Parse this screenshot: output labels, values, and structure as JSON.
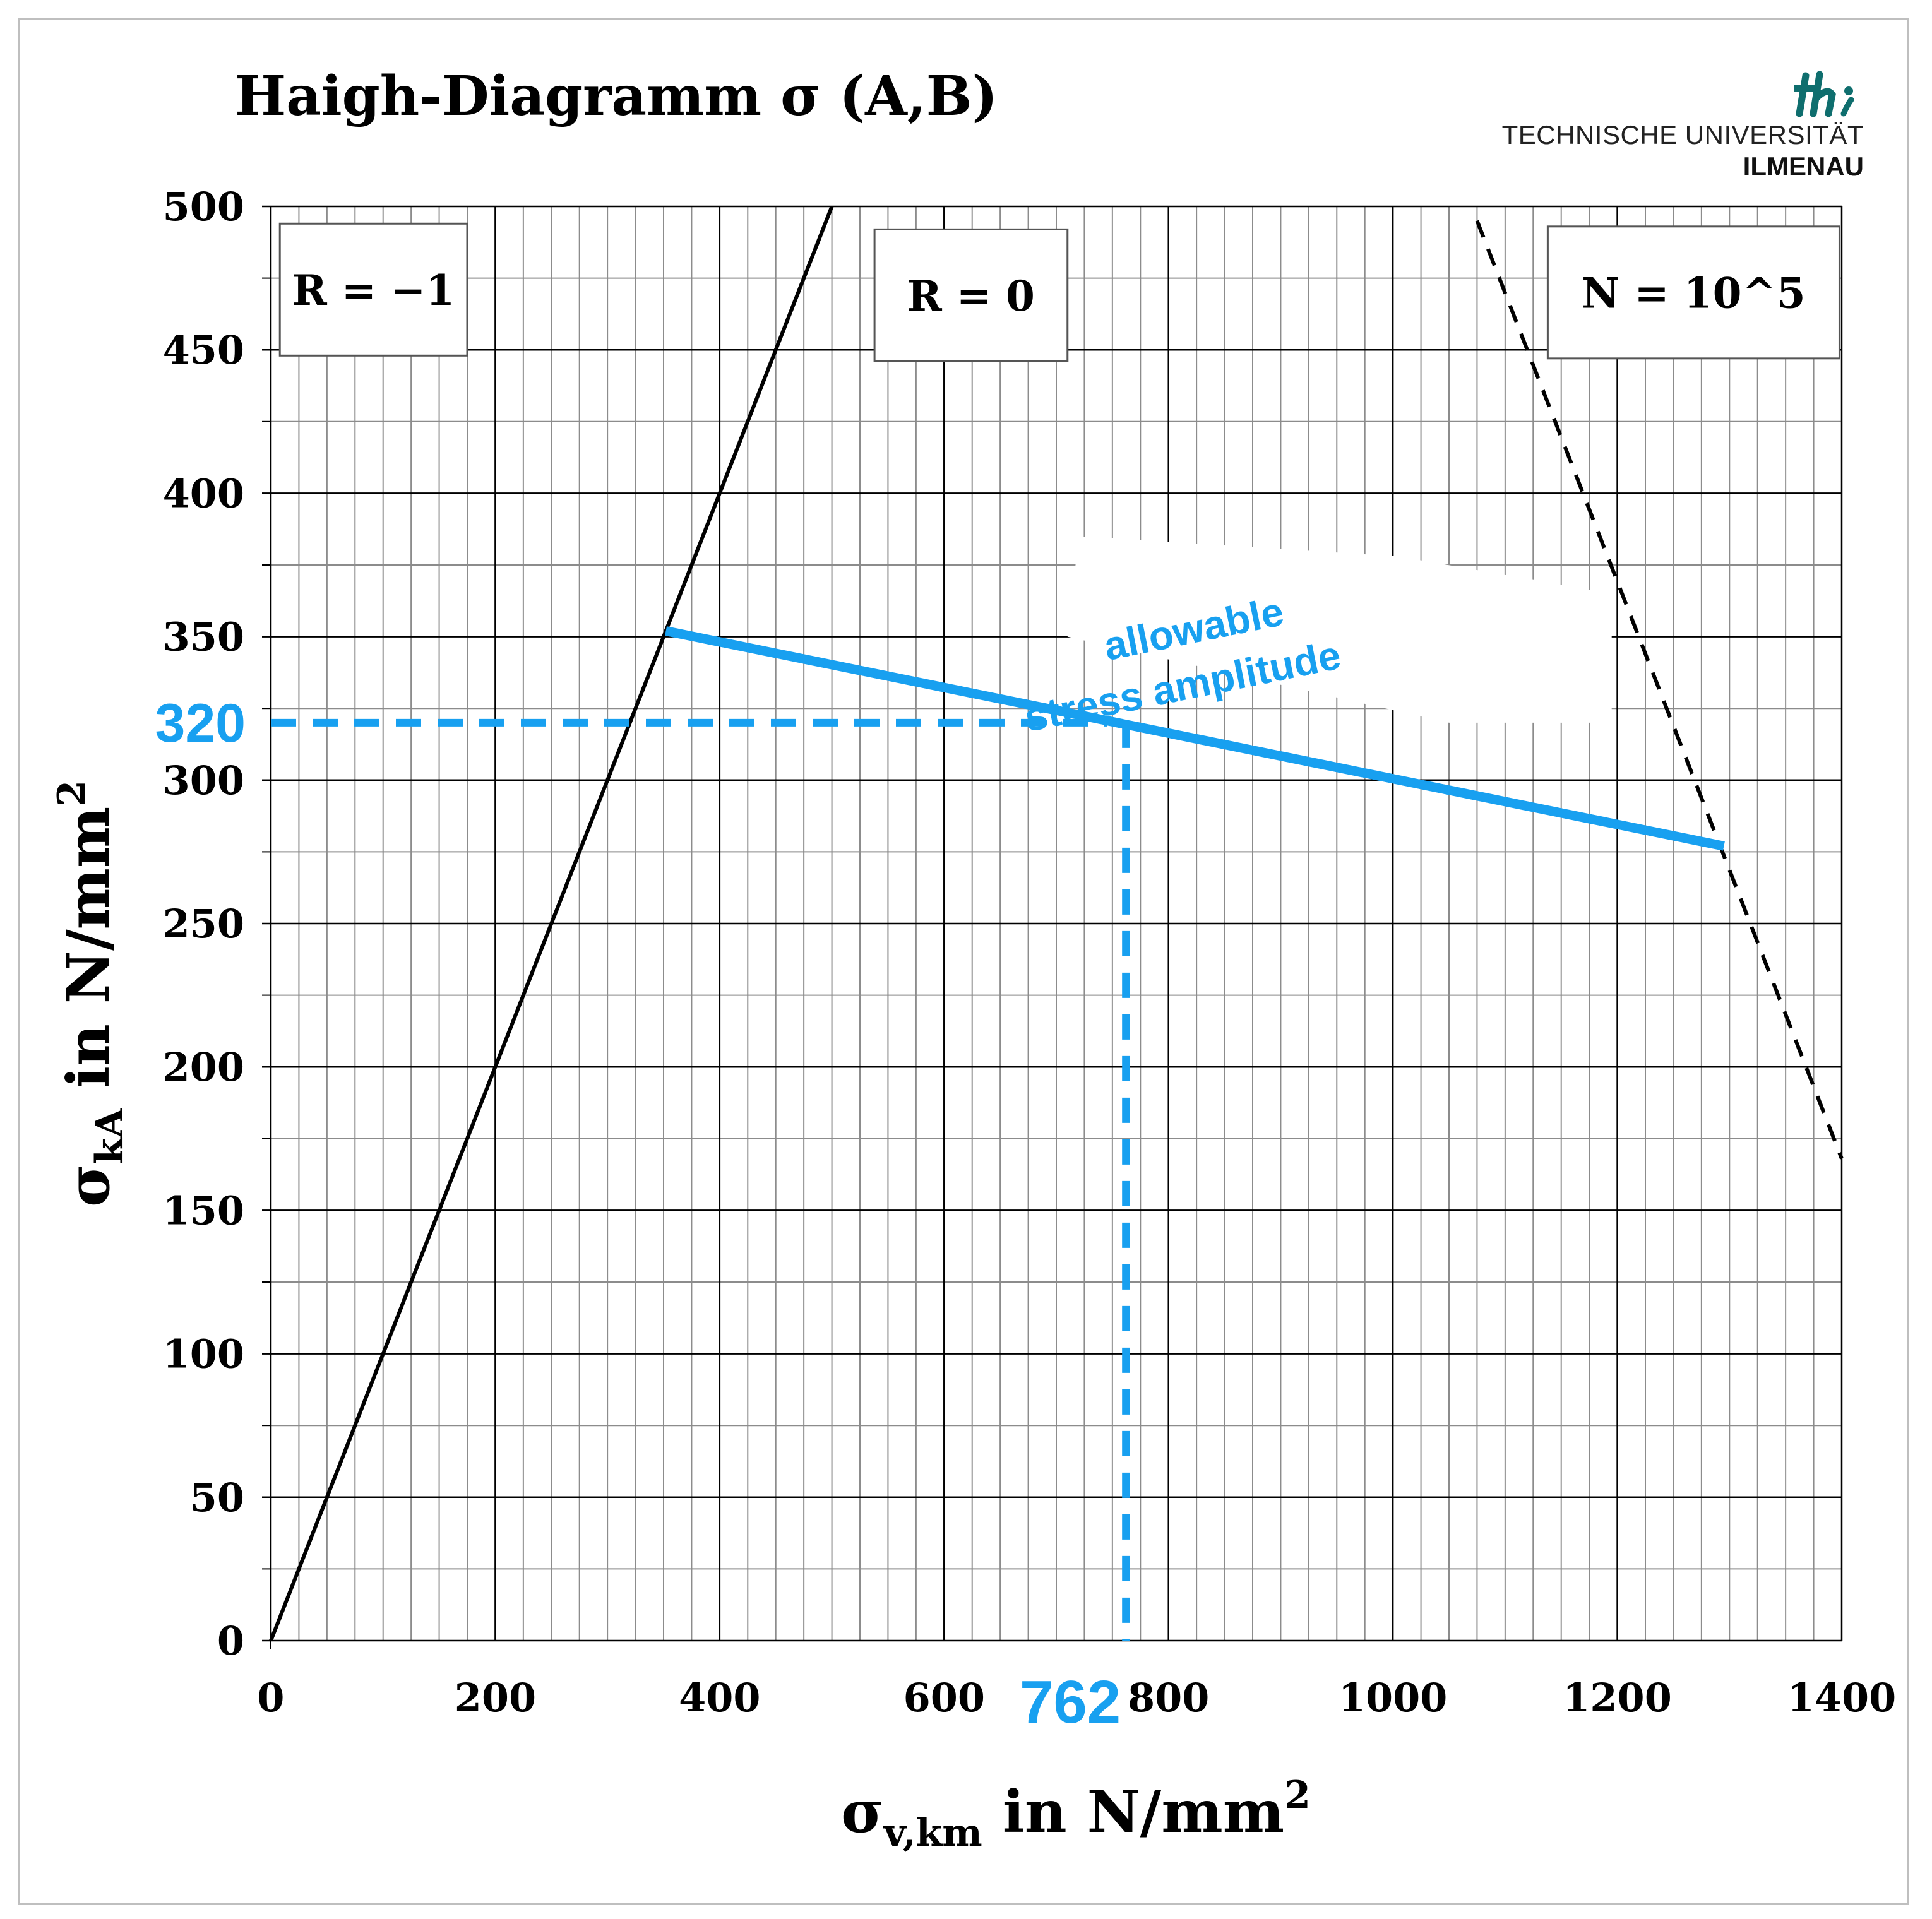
{
  "chart_data": {
    "type": "line",
    "title": "Haigh-Diagramm σ (A,B)",
    "xlabel": {
      "main": "σ",
      "sub": "v,km",
      "unit": " in  N/mm",
      "sup": "2"
    },
    "ylabel": {
      "main": "σ",
      "sub": "kA",
      "unit": " in N/mm",
      "sup": "2"
    },
    "xlim": [
      0,
      1400
    ],
    "ylim": [
      0,
      500
    ],
    "x_major_ticks": [
      0,
      200,
      400,
      600,
      800,
      1000,
      1200,
      1400
    ],
    "y_major_ticks": [
      0,
      50,
      100,
      150,
      200,
      250,
      300,
      350,
      400,
      450,
      500
    ],
    "x_minor_step": 25,
    "y_minor_step": 25,
    "grid": true,
    "series": [
      {
        "name": "R = −1",
        "style": "solid",
        "color": "#000000",
        "points": [
          [
            0,
            0
          ],
          [
            500,
            500
          ]
        ]
      },
      {
        "name": "N = 10^5",
        "style": "dashed",
        "color": "#000000",
        "points": [
          [
            1075,
            495
          ],
          [
            1400,
            168
          ]
        ]
      },
      {
        "name": "allowable stress amplitude",
        "style": "solid",
        "color": "#18A0F0",
        "points": [
          [
            352,
            352
          ],
          [
            1295,
            277
          ]
        ]
      }
    ],
    "guide_lines": {
      "x_value": 762,
      "y_value": 320,
      "color": "#18A0F0"
    },
    "annotations": {
      "box_r_minus1": "R = −1",
      "box_r_zero": "R = 0",
      "box_n": "N = 10^5",
      "blue_label_line1": "allowable",
      "blue_label_line2": "stress  amplitude",
      "x_highlight": "762",
      "y_highlight": "320"
    },
    "colors": {
      "accent": "#18A0F0",
      "grid_major": "#000000",
      "grid_minor": "#8c8c8c"
    }
  },
  "logo": {
    "line1": "TECHNISCHE UNIVERSITÄT",
    "line2": "ILMENAU",
    "mark_color": "#0f6e6e"
  }
}
